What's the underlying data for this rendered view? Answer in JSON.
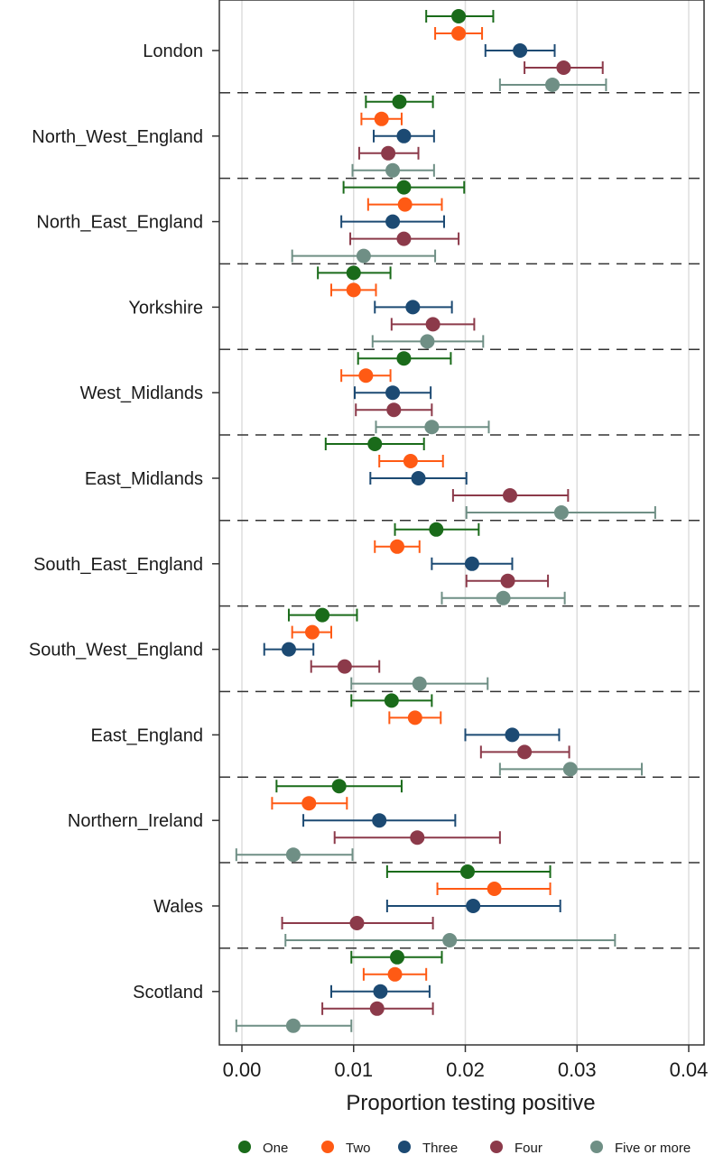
{
  "chart_data": {
    "type": "scatter",
    "orientation": "horizontal",
    "title": "",
    "xlabel": "Proportion testing positive",
    "ylabel": "",
    "xlim": [
      -0.002,
      0.041
    ],
    "xticks": [
      0.0,
      0.01,
      0.02,
      0.03,
      0.04
    ],
    "xtick_labels": [
      "0.00",
      "0.01",
      "0.02",
      "0.03",
      "0.04"
    ],
    "grid": "vertical",
    "legend": "bottom",
    "categories": [
      "London",
      "North_West_England",
      "North_East_England",
      "Yorkshire",
      "West_Midlands",
      "East_Midlands",
      "South_East_England",
      "South_West_England",
      "East_England",
      "Northern_Ireland",
      "Wales",
      "Scotland"
    ],
    "series": [
      {
        "name": "One",
        "color": "#1a6b1a",
        "values": [
          {
            "est": 0.0194,
            "lo": 0.0165,
            "hi": 0.0225
          },
          {
            "est": 0.0141,
            "lo": 0.0111,
            "hi": 0.0171
          },
          {
            "est": 0.0145,
            "lo": 0.0091,
            "hi": 0.0199
          },
          {
            "est": 0.01,
            "lo": 0.0068,
            "hi": 0.0133
          },
          {
            "est": 0.0145,
            "lo": 0.0104,
            "hi": 0.0187
          },
          {
            "est": 0.0119,
            "lo": 0.0075,
            "hi": 0.0163
          },
          {
            "est": 0.0174,
            "lo": 0.0137,
            "hi": 0.0212
          },
          {
            "est": 0.0072,
            "lo": 0.0042,
            "hi": 0.0103
          },
          {
            "est": 0.0134,
            "lo": 0.0098,
            "hi": 0.017
          },
          {
            "est": 0.0087,
            "lo": 0.0031,
            "hi": 0.0143
          },
          {
            "est": 0.0202,
            "lo": 0.013,
            "hi": 0.0276
          },
          {
            "est": 0.0139,
            "lo": 0.0098,
            "hi": 0.0179
          }
        ]
      },
      {
        "name": "Two",
        "color": "#ff5a14",
        "values": [
          {
            "est": 0.0194,
            "lo": 0.0173,
            "hi": 0.0215
          },
          {
            "est": 0.0125,
            "lo": 0.0107,
            "hi": 0.0143
          },
          {
            "est": 0.0146,
            "lo": 0.0113,
            "hi": 0.0179
          },
          {
            "est": 0.01,
            "lo": 0.008,
            "hi": 0.012
          },
          {
            "est": 0.0111,
            "lo": 0.0089,
            "hi": 0.0133
          },
          {
            "est": 0.0151,
            "lo": 0.0123,
            "hi": 0.018
          },
          {
            "est": 0.0139,
            "lo": 0.0119,
            "hi": 0.0159
          },
          {
            "est": 0.0063,
            "lo": 0.0045,
            "hi": 0.008
          },
          {
            "est": 0.0155,
            "lo": 0.0132,
            "hi": 0.0178
          },
          {
            "est": 0.006,
            "lo": 0.0027,
            "hi": 0.0094
          },
          {
            "est": 0.0226,
            "lo": 0.0175,
            "hi": 0.0276
          },
          {
            "est": 0.0137,
            "lo": 0.0109,
            "hi": 0.0165
          }
        ]
      },
      {
        "name": "Three",
        "color": "#1c4a73",
        "values": [
          {
            "est": 0.0249,
            "lo": 0.0218,
            "hi": 0.028
          },
          {
            "est": 0.0145,
            "lo": 0.0118,
            "hi": 0.0172
          },
          {
            "est": 0.0135,
            "lo": 0.0089,
            "hi": 0.0181
          },
          {
            "est": 0.0153,
            "lo": 0.0119,
            "hi": 0.0188
          },
          {
            "est": 0.0135,
            "lo": 0.0101,
            "hi": 0.0169
          },
          {
            "est": 0.0158,
            "lo": 0.0115,
            "hi": 0.0201
          },
          {
            "est": 0.0206,
            "lo": 0.017,
            "hi": 0.0242
          },
          {
            "est": 0.0042,
            "lo": 0.002,
            "hi": 0.0064
          },
          {
            "est": 0.0242,
            "lo": 0.02,
            "hi": 0.0284
          },
          {
            "est": 0.0123,
            "lo": 0.0055,
            "hi": 0.0191
          },
          {
            "est": 0.0207,
            "lo": 0.013,
            "hi": 0.0285
          },
          {
            "est": 0.0124,
            "lo": 0.008,
            "hi": 0.0168
          }
        ]
      },
      {
        "name": "Four",
        "color": "#8c3a4a",
        "values": [
          {
            "est": 0.0288,
            "lo": 0.0253,
            "hi": 0.0323
          },
          {
            "est": 0.0131,
            "lo": 0.0105,
            "hi": 0.0158
          },
          {
            "est": 0.0145,
            "lo": 0.0097,
            "hi": 0.0194
          },
          {
            "est": 0.0171,
            "lo": 0.0134,
            "hi": 0.0208
          },
          {
            "est": 0.0136,
            "lo": 0.0102,
            "hi": 0.017
          },
          {
            "est": 0.024,
            "lo": 0.0189,
            "hi": 0.0292
          },
          {
            "est": 0.0238,
            "lo": 0.0201,
            "hi": 0.0274
          },
          {
            "est": 0.0092,
            "lo": 0.0062,
            "hi": 0.0123
          },
          {
            "est": 0.0253,
            "lo": 0.0214,
            "hi": 0.0293
          },
          {
            "est": 0.0157,
            "lo": 0.0083,
            "hi": 0.0231
          },
          {
            "est": 0.0103,
            "lo": 0.0036,
            "hi": 0.0171
          },
          {
            "est": 0.0121,
            "lo": 0.0072,
            "hi": 0.0171
          }
        ]
      },
      {
        "name": "Five or more",
        "color": "#6f8f85",
        "values": [
          {
            "est": 0.0278,
            "lo": 0.0231,
            "hi": 0.0326
          },
          {
            "est": 0.0135,
            "lo": 0.0099,
            "hi": 0.0172
          },
          {
            "est": 0.0109,
            "lo": 0.0045,
            "hi": 0.0173
          },
          {
            "est": 0.0166,
            "lo": 0.0117,
            "hi": 0.0216
          },
          {
            "est": 0.017,
            "lo": 0.012,
            "hi": 0.0221
          },
          {
            "est": 0.0286,
            "lo": 0.0201,
            "hi": 0.037
          },
          {
            "est": 0.0234,
            "lo": 0.0179,
            "hi": 0.0289
          },
          {
            "est": 0.0159,
            "lo": 0.0098,
            "hi": 0.022
          },
          {
            "est": 0.0294,
            "lo": 0.0231,
            "hi": 0.0358
          },
          {
            "est": 0.0046,
            "lo": -0.0005,
            "hi": 0.0099
          },
          {
            "est": 0.0186,
            "lo": 0.0039,
            "hi": 0.0334
          },
          {
            "est": 0.0046,
            "lo": -0.0005,
            "hi": 0.0098
          }
        ]
      }
    ]
  }
}
